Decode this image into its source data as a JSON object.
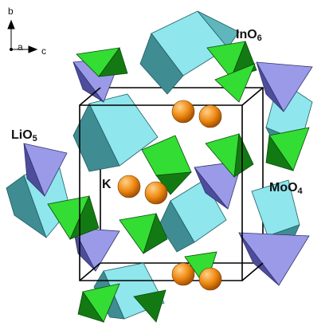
{
  "axes": {
    "b": "b",
    "a": "a",
    "c": "c"
  },
  "labels": {
    "ino6": {
      "base": "InO",
      "sub": "6"
    },
    "lio5": {
      "base": "LiO",
      "sub": "5"
    },
    "moo4": {
      "base": "MoO",
      "sub": "4"
    },
    "k": "K"
  },
  "colors": {
    "ino6_light": "#8fe6ec",
    "ino6_dark": "#3f8c92",
    "lio5_light": "#9a9ae8",
    "lio5_dark": "#4d4d9c",
    "moo4_light": "#33dd33",
    "moo4_dark": "#137a13",
    "k_atom": "#ee8811",
    "cell_edge": "#000000"
  }
}
